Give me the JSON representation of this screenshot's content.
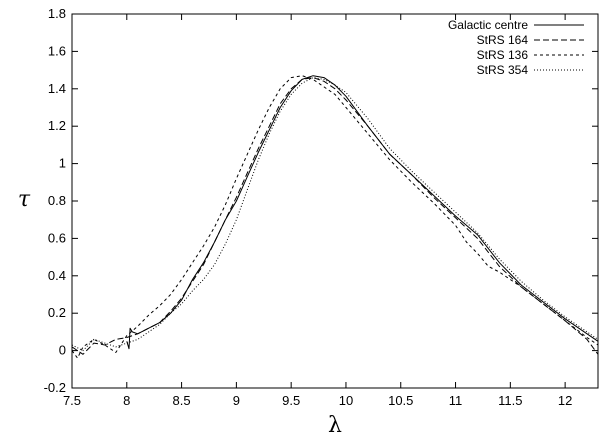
{
  "chart_data": {
    "type": "line",
    "title": "",
    "xlabel": "λ",
    "ylabel": "τ",
    "xlim": [
      7.5,
      12.3
    ],
    "ylim": [
      -0.2,
      1.8
    ],
    "grid": false,
    "legend_position": "top-right",
    "x_ticks": [
      7.5,
      8,
      8.5,
      9,
      9.5,
      10,
      10.5,
      11,
      11.5,
      12
    ],
    "x_tick_labels": [
      "7.5",
      "8",
      "8.5",
      "9",
      "9.5",
      "10",
      "10.5",
      "11",
      "11.5",
      "12"
    ],
    "y_ticks": [
      -0.2,
      0,
      0.2,
      0.4,
      0.6,
      0.8,
      1,
      1.2,
      1.4,
      1.6,
      1.8
    ],
    "y_tick_labels": [
      "-0.2",
      "0",
      "0.2",
      "0.4",
      "0.6",
      "0.8",
      "1",
      "1.2",
      "1.4",
      "1.6",
      "1.8"
    ],
    "series": [
      {
        "name": "Galactic centre",
        "style": "solid",
        "x": [
          8.0,
          8.02,
          8.03,
          8.05,
          8.1,
          8.2,
          8.3,
          8.4,
          8.5,
          8.6,
          8.7,
          8.8,
          8.9,
          9.0,
          9.1,
          9.2,
          9.3,
          9.4,
          9.5,
          9.6,
          9.7,
          9.8,
          9.9,
          10.0,
          10.2,
          10.4,
          10.6,
          10.8,
          11.0,
          11.2,
          11.4,
          11.6,
          11.8,
          12.0,
          12.2,
          12.3
        ],
        "values": [
          0.05,
          0.01,
          0.12,
          0.1,
          0.09,
          0.12,
          0.15,
          0.2,
          0.27,
          0.38,
          0.47,
          0.58,
          0.7,
          0.8,
          0.93,
          1.06,
          1.18,
          1.3,
          1.39,
          1.45,
          1.47,
          1.46,
          1.42,
          1.36,
          1.2,
          1.05,
          0.94,
          0.83,
          0.72,
          0.62,
          0.47,
          0.35,
          0.26,
          0.17,
          0.09,
          0.05
        ]
      },
      {
        "name": "StRS 164",
        "style": "long-dash",
        "x": [
          7.5,
          7.6,
          7.7,
          7.8,
          7.9,
          8.0,
          8.1,
          8.2,
          8.3,
          8.4,
          8.5,
          8.6,
          8.7,
          8.8,
          8.9,
          9.0,
          9.1,
          9.2,
          9.3,
          9.4,
          9.5,
          9.6,
          9.7,
          9.8,
          9.9,
          10.0,
          10.2,
          10.4,
          10.6,
          10.8,
          11.0,
          11.2,
          11.4,
          11.6,
          11.8,
          12.0,
          12.2,
          12.3
        ],
        "values": [
          0.02,
          -0.02,
          0.04,
          0.03,
          0.06,
          0.07,
          0.09,
          0.12,
          0.15,
          0.21,
          0.28,
          0.37,
          0.46,
          0.58,
          0.7,
          0.82,
          0.95,
          1.08,
          1.2,
          1.32,
          1.4,
          1.45,
          1.46,
          1.44,
          1.4,
          1.34,
          1.2,
          1.05,
          0.94,
          0.82,
          0.71,
          0.6,
          0.45,
          0.34,
          0.25,
          0.16,
          0.06,
          -0.02
        ]
      },
      {
        "name": "StRS 136",
        "style": "short-dash",
        "x": [
          7.5,
          7.55,
          7.6,
          7.7,
          7.8,
          7.9,
          8.0,
          8.1,
          8.2,
          8.3,
          8.4,
          8.5,
          8.6,
          8.7,
          8.8,
          8.9,
          9.0,
          9.1,
          9.2,
          9.3,
          9.4,
          9.5,
          9.6,
          9.7,
          9.8,
          9.9,
          10.0,
          10.2,
          10.4,
          10.6,
          10.8,
          11.0,
          11.1,
          11.2,
          11.3,
          11.4,
          11.6,
          11.8,
          12.0,
          12.2,
          12.3
        ],
        "values": [
          0.0,
          -0.04,
          0.02,
          0.06,
          0.03,
          -0.01,
          0.08,
          0.13,
          0.19,
          0.24,
          0.3,
          0.38,
          0.47,
          0.56,
          0.66,
          0.78,
          0.92,
          1.05,
          1.18,
          1.3,
          1.4,
          1.46,
          1.47,
          1.45,
          1.41,
          1.37,
          1.3,
          1.16,
          1.02,
          0.9,
          0.79,
          0.67,
          0.58,
          0.52,
          0.45,
          0.42,
          0.34,
          0.25,
          0.16,
          0.07,
          0.03
        ]
      },
      {
        "name": "StRS 354",
        "style": "dotted",
        "x": [
          7.5,
          7.6,
          7.7,
          7.8,
          7.9,
          8.0,
          8.1,
          8.2,
          8.3,
          8.4,
          8.5,
          8.6,
          8.7,
          8.8,
          8.9,
          9.0,
          9.1,
          9.2,
          9.3,
          9.4,
          9.5,
          9.6,
          9.7,
          9.8,
          9.9,
          10.0,
          10.2,
          10.4,
          10.6,
          10.8,
          11.0,
          11.2,
          11.4,
          11.6,
          11.8,
          12.0,
          12.2,
          12.3
        ],
        "values": [
          0.03,
          0.0,
          0.06,
          0.04,
          0.02,
          0.04,
          0.06,
          0.1,
          0.14,
          0.2,
          0.25,
          0.32,
          0.38,
          0.46,
          0.57,
          0.7,
          0.86,
          1.02,
          1.16,
          1.28,
          1.37,
          1.43,
          1.46,
          1.45,
          1.42,
          1.38,
          1.24,
          1.08,
          0.96,
          0.85,
          0.74,
          0.63,
          0.49,
          0.37,
          0.27,
          0.18,
          0.1,
          0.06
        ]
      }
    ]
  }
}
